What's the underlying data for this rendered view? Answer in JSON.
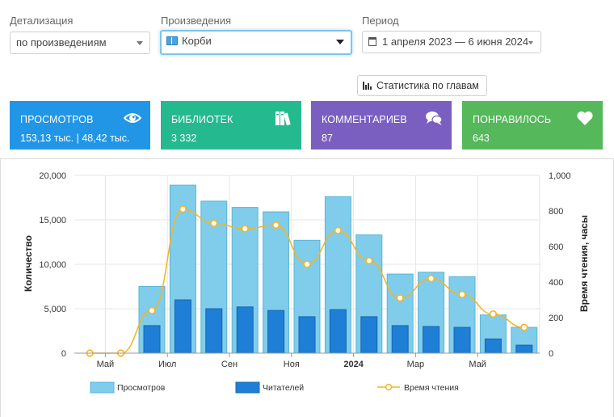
{
  "filters": {
    "detail": {
      "label": "Детализация",
      "value": "по произведениям"
    },
    "works": {
      "label": "Произведения",
      "value": "Корби"
    },
    "period": {
      "label": "Период",
      "value": "1 апреля 2023 — 6 июня 2024"
    }
  },
  "chapter_stats_button": "Статистика по главам",
  "tiles": [
    {
      "title": "ПРОСМОТРОВ",
      "value": "153,13 тыс. | 48,42 тыс.",
      "color": "#2196e6",
      "icon": "eye-icon"
    },
    {
      "title": "БИБЛИОТЕК",
      "value": "3 332",
      "color": "#25b98f",
      "icon": "books-icon"
    },
    {
      "title": "КОММЕНТАРИЕВ",
      "value": "87",
      "color": "#7a5fc0",
      "icon": "comments-icon"
    },
    {
      "title": "ПОНРАВИЛОСЬ",
      "value": "643",
      "color": "#55b85a",
      "icon": "heart-icon"
    }
  ],
  "chart_data": {
    "type": "bar",
    "months": [
      "2023-04",
      "2023-05",
      "2023-06",
      "2023-07",
      "2023-08",
      "2023-09",
      "2023-10",
      "2023-11",
      "2023-12",
      "2024-01",
      "2024-02",
      "2024-03",
      "2024-04",
      "2024-05",
      "2024-06"
    ],
    "x_tick_labels": [
      "Май",
      "Июл",
      "Сен",
      "Ноя",
      "2024",
      "Мар",
      "Май"
    ],
    "series": [
      {
        "name": "Просмотров",
        "type": "bar",
        "axis": "left",
        "color": "#7fcdea",
        "values": [
          0,
          0,
          7500,
          18900,
          17100,
          16400,
          15900,
          12700,
          17600,
          13300,
          8900,
          9100,
          8600,
          4300,
          2900
        ]
      },
      {
        "name": "Читателей",
        "type": "bar",
        "axis": "left",
        "color": "#1f7ed6",
        "values": [
          0,
          0,
          3100,
          6000,
          5000,
          5200,
          4800,
          4100,
          4900,
          4100,
          3100,
          3000,
          2900,
          1600,
          900
        ]
      },
      {
        "name": "Время чтения",
        "type": "line",
        "axis": "right",
        "color": "#f5b422",
        "values": [
          0,
          0,
          240,
          810,
          730,
          700,
          720,
          500,
          690,
          520,
          310,
          420,
          330,
          220,
          145
        ]
      }
    ],
    "ylabel": "Количество",
    "y2label": "Время чтения, часы",
    "ylim": [
      0,
      20000
    ],
    "y2lim": [
      0,
      1000
    ],
    "y_ticks": [
      "0",
      "5,000",
      "10,000",
      "15,000",
      "20,000"
    ],
    "y2_ticks": [
      "0",
      "200",
      "400",
      "600",
      "800",
      "1,000"
    ],
    "legend_position": "bottom"
  }
}
